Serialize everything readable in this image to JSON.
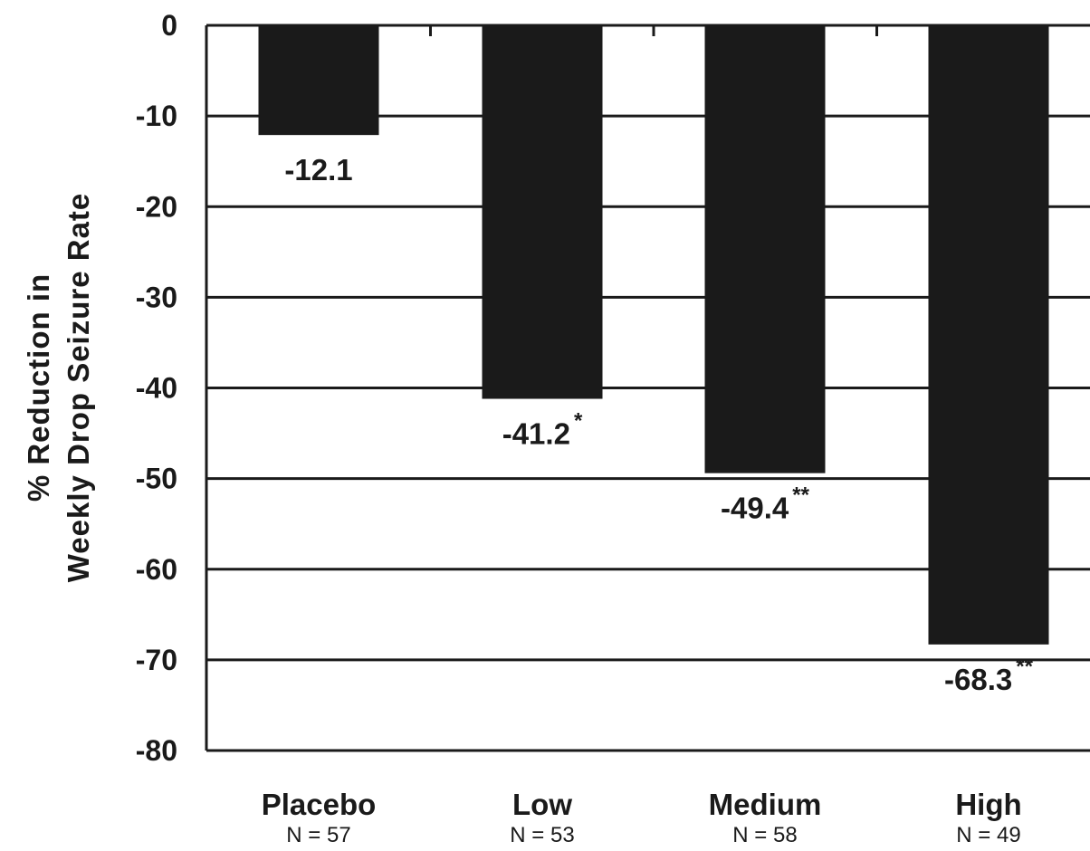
{
  "chart_data": {
    "type": "bar",
    "title": "",
    "ylabel_lines": [
      "% Reduction in",
      "Weekly Drop Seizure Rate"
    ],
    "categories": [
      "Placebo",
      "Low",
      "Medium",
      "High"
    ],
    "n_labels": [
      "N = 57",
      "N = 53",
      "N = 58",
      "N = 49"
    ],
    "values": [
      -12.1,
      -41.2,
      -49.4,
      -68.3
    ],
    "value_labels": [
      "-12.1",
      "-41.2",
      "-49.4",
      "-68.3"
    ],
    "significance": [
      "",
      "*",
      "**",
      "**"
    ],
    "ylim": [
      -80,
      0
    ],
    "yticks": [
      0,
      -10,
      -20,
      -30,
      -40,
      -50,
      -60,
      -70,
      -80
    ],
    "grid": true,
    "bar_color": "#1a1a1a"
  }
}
